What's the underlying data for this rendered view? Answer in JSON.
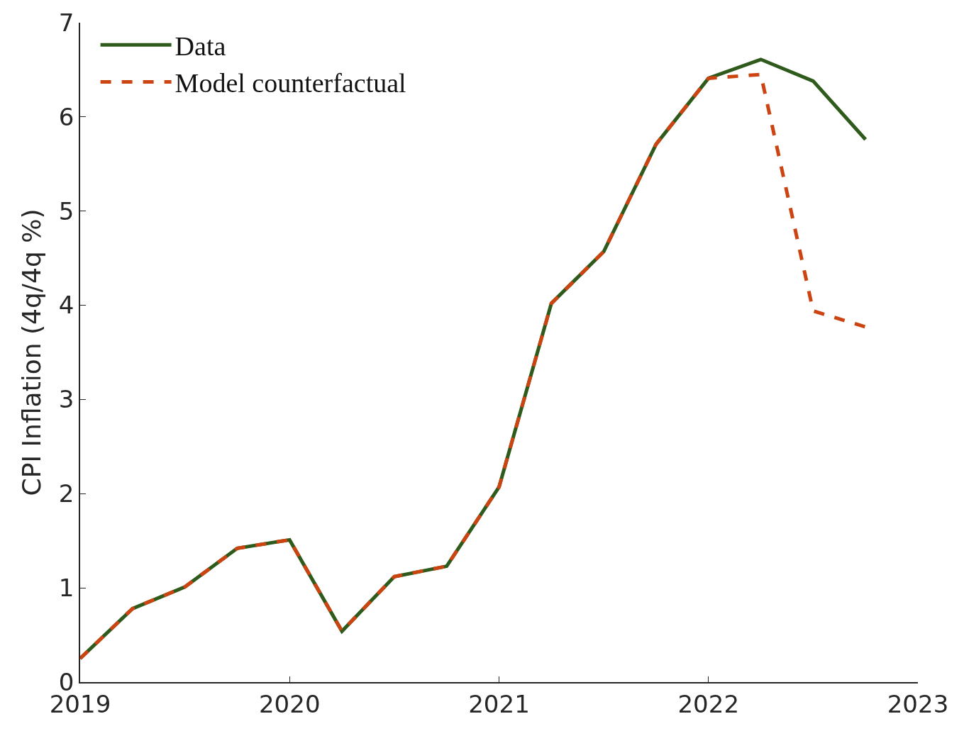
{
  "chart_data": {
    "type": "line",
    "ylabel": "CPI Inflation (4q/4q %)",
    "x": [
      2019,
      2019.25,
      2019.5,
      2019.75,
      2020,
      2020.25,
      2020.5,
      2020.75,
      2021,
      2021.25,
      2021.5,
      2021.75,
      2022,
      2022.25,
      2022.5,
      2022.75
    ],
    "series": [
      {
        "name": "Data",
        "color": "#2e5a1c",
        "line_style": "solid",
        "values": [
          0.25,
          0.78,
          1.01,
          1.42,
          1.51,
          0.54,
          1.12,
          1.23,
          2.07,
          4.02,
          4.57,
          5.71,
          6.41,
          6.61,
          6.38,
          5.76
        ]
      },
      {
        "name": "Model counterfactual",
        "color": "#cc4411",
        "line_style": "dashed",
        "values": [
          0.25,
          0.78,
          1.01,
          1.42,
          1.51,
          0.54,
          1.12,
          1.23,
          2.07,
          4.02,
          4.57,
          5.71,
          6.41,
          6.45,
          3.94,
          3.77
        ]
      }
    ],
    "xlim": [
      2019,
      2023
    ],
    "xticks": [
      2019,
      2020,
      2021,
      2022,
      2023
    ],
    "ylim": [
      0,
      7
    ],
    "yticks": [
      0,
      1,
      2,
      3,
      4,
      5,
      6,
      7
    ],
    "legend": "top left",
    "marker": "none"
  }
}
